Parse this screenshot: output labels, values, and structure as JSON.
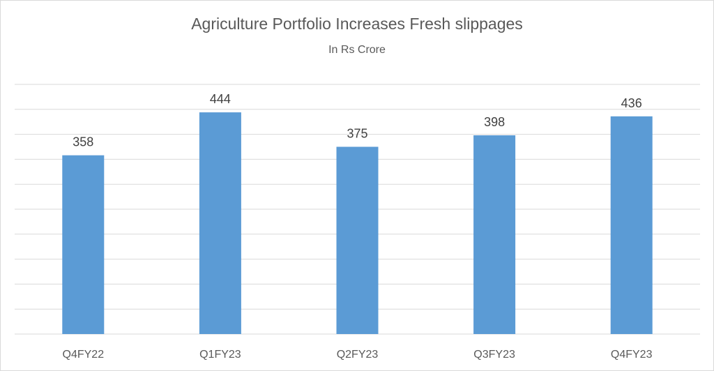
{
  "chart_data": {
    "type": "bar",
    "title": "Agriculture Portfolio Increases Fresh slippages",
    "subtitle": "In Rs Crore",
    "categories": [
      "Q4FY22",
      "Q1FY23",
      "Q2FY23",
      "Q3FY23",
      "Q4FY23"
    ],
    "values": [
      358,
      444,
      375,
      398,
      436
    ],
    "ylim": [
      0,
      500
    ],
    "grid": true,
    "legend": "none",
    "bar_color": "#5B9BD5",
    "gridline_color": "#D9D9D9"
  }
}
